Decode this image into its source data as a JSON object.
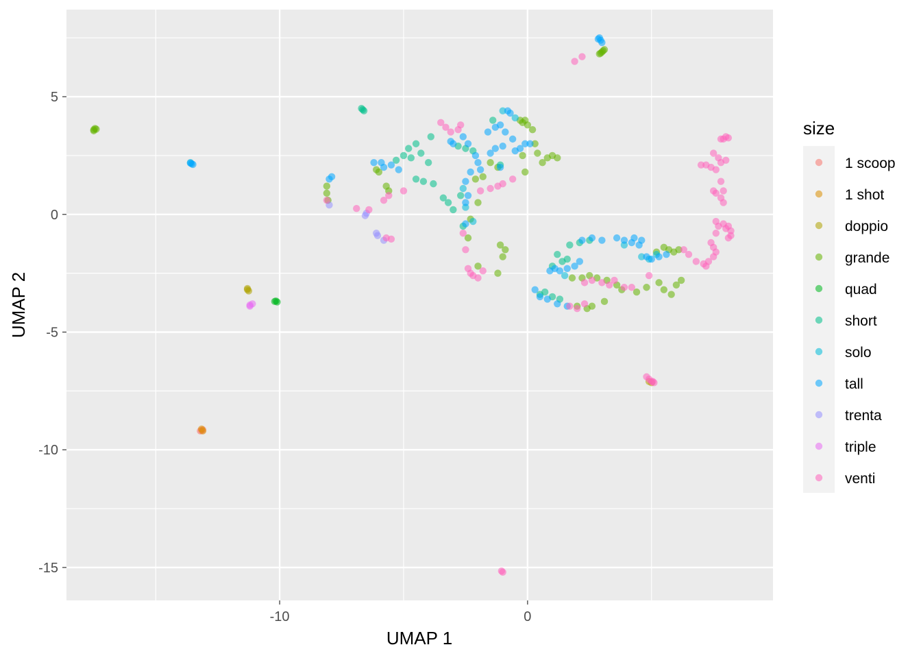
{
  "chart_data": {
    "type": "scatter",
    "xlabel": "UMAP 1",
    "ylabel": "UMAP 2",
    "xlim": [
      -18.6,
      9.9
    ],
    "ylim": [
      -16.4,
      8.7
    ],
    "x_ticks": [
      -10,
      0
    ],
    "y_ticks": [
      5,
      0,
      -5,
      -10,
      -15
    ],
    "x_tick_labels": [
      "-10",
      "0"
    ],
    "y_tick_labels": [
      "5",
      "0",
      "-5",
      "-10",
      "-15"
    ],
    "grid": true,
    "point_opacity": 0.55,
    "legend": {
      "title": "size",
      "placement": "right",
      "entries": [
        "1 scoop",
        "1 shot",
        "doppio",
        "grande",
        "quad",
        "short",
        "solo",
        "tall",
        "trenta",
        "triple",
        "venti"
      ]
    },
    "series": [
      {
        "name": "1 scoop",
        "color": "#F8766D",
        "points": [
          [
            -13.2,
            -9.2
          ],
          [
            -13.1,
            -9.15
          ],
          [
            -13.15,
            -9.18
          ]
        ]
      },
      {
        "name": "1 shot",
        "color": "#DB8E00",
        "points": [
          [
            -13.15,
            -9.12
          ],
          [
            -13.1,
            -9.2
          ]
        ]
      },
      {
        "name": "doppio",
        "color": "#AEA200",
        "points": [
          [
            -11.3,
            -3.2
          ],
          [
            -11.25,
            -3.25
          ],
          [
            -11.3,
            -3.15
          ],
          [
            5.0,
            -7.15
          ],
          [
            4.9,
            -7.1
          ]
        ]
      },
      {
        "name": "grande",
        "color": "#64B200",
        "points": [
          [
            -17.5,
            3.6
          ],
          [
            -17.45,
            3.65
          ],
          [
            -17.4,
            3.62
          ],
          [
            -17.5,
            3.55
          ],
          [
            3.1,
            7.0
          ],
          [
            3.0,
            6.9
          ],
          [
            2.95,
            6.85
          ],
          [
            2.9,
            6.82
          ],
          [
            3.05,
            6.95
          ],
          [
            -8.1,
            0.9
          ],
          [
            -8.05,
            0.6
          ],
          [
            -8.1,
            1.2
          ],
          [
            -6.1,
            1.9
          ],
          [
            -6.0,
            1.8
          ],
          [
            -5.7,
            1.2
          ],
          [
            -5.6,
            1.0
          ],
          [
            -0.3,
            4.0
          ],
          [
            -0.2,
            3.9
          ],
          [
            -0.1,
            4.0
          ],
          [
            0.0,
            3.8
          ],
          [
            0.2,
            3.6
          ],
          [
            0.3,
            3.0
          ],
          [
            0.4,
            2.6
          ],
          [
            0.8,
            2.4
          ],
          [
            1.0,
            2.5
          ],
          [
            1.2,
            2.4
          ],
          [
            0.6,
            2.2
          ],
          [
            -0.2,
            2.5
          ],
          [
            -0.1,
            1.8
          ],
          [
            -1.2,
            2.0
          ],
          [
            -1.5,
            2.2
          ],
          [
            -1.8,
            1.6
          ],
          [
            -2.0,
            0.5
          ],
          [
            -2.1,
            1.5
          ],
          [
            -2.3,
            -0.2
          ],
          [
            -2.4,
            -1.0
          ],
          [
            -2.0,
            -2.2
          ],
          [
            -1.2,
            -2.5
          ],
          [
            -1.0,
            -1.8
          ],
          [
            -0.9,
            -1.5
          ],
          [
            -1.1,
            -1.3
          ],
          [
            1.8,
            -2.7
          ],
          [
            2.2,
            -2.7
          ],
          [
            2.5,
            -2.6
          ],
          [
            2.8,
            -2.7
          ],
          [
            3.2,
            -2.8
          ],
          [
            3.6,
            -3.0
          ],
          [
            3.8,
            -3.2
          ],
          [
            2.0,
            -3.9
          ],
          [
            2.4,
            -4.0
          ],
          [
            2.6,
            -3.9
          ],
          [
            3.1,
            -3.7
          ],
          [
            5.3,
            -2.9
          ],
          [
            5.5,
            -3.2
          ],
          [
            5.8,
            -3.4
          ],
          [
            6.0,
            -3.0
          ],
          [
            6.2,
            -2.8
          ],
          [
            5.7,
            -1.5
          ],
          [
            5.5,
            -1.4
          ],
          [
            5.9,
            -1.6
          ],
          [
            6.1,
            -1.5
          ],
          [
            5.2,
            -1.6
          ],
          [
            4.8,
            -3.1
          ],
          [
            4.4,
            -3.3
          ]
        ]
      },
      {
        "name": "quad",
        "color": "#00B81F",
        "points": [
          [
            -10.2,
            -3.7
          ],
          [
            -10.1,
            -3.72
          ],
          [
            -10.15,
            -3.68
          ]
        ]
      },
      {
        "name": "short",
        "color": "#00C08B",
        "points": [
          [
            -6.7,
            4.5
          ],
          [
            -6.6,
            4.4
          ],
          [
            -6.65,
            4.45
          ],
          [
            -5.0,
            2.5
          ],
          [
            -4.8,
            2.8
          ],
          [
            -4.5,
            3.0
          ],
          [
            -4.3,
            2.6
          ],
          [
            -4.0,
            2.2
          ],
          [
            -3.9,
            3.3
          ],
          [
            -5.3,
            2.3
          ],
          [
            -4.7,
            2.4
          ],
          [
            -4.5,
            1.5
          ],
          [
            -4.2,
            1.4
          ],
          [
            -3.8,
            1.3
          ],
          [
            -3.4,
            0.7
          ],
          [
            -3.2,
            0.5
          ],
          [
            -3.0,
            0.2
          ],
          [
            -2.6,
            -0.5
          ],
          [
            -2.7,
            0.8
          ],
          [
            -2.2,
            2.7
          ],
          [
            -2.5,
            2.8
          ],
          [
            -2.8,
            2.9
          ],
          [
            -1.4,
            4.0
          ],
          [
            -1.1,
            2.1
          ],
          [
            0.5,
            -3.4
          ],
          [
            0.7,
            -3.3
          ],
          [
            1.0,
            -3.5
          ],
          [
            1.3,
            -3.6
          ],
          [
            1.0,
            -2.2
          ],
          [
            1.4,
            -2.0
          ],
          [
            1.7,
            -1.3
          ],
          [
            2.1,
            -1.2
          ],
          [
            2.5,
            -1.1
          ],
          [
            1.6,
            -1.9
          ],
          [
            1.2,
            -1.7
          ]
        ]
      },
      {
        "name": "solo",
        "color": "#00BCD8",
        "points": [
          [
            -13.6,
            2.2
          ],
          [
            -1.0,
            4.4
          ],
          [
            -0.5,
            4.1
          ],
          [
            -2.6,
            1.1
          ],
          [
            -2.5,
            0.3
          ],
          [
            -2.2,
            -0.3
          ],
          [
            4.6,
            -1.8
          ],
          [
            4.9,
            -1.9
          ],
          [
            5.2,
            -1.7
          ],
          [
            3.9,
            -1.3
          ],
          [
            1.5,
            -2.6
          ]
        ]
      },
      {
        "name": "tall",
        "color": "#00A5FF",
        "points": [
          [
            -13.55,
            2.15
          ],
          [
            -13.5,
            2.12
          ],
          [
            -13.6,
            2.18
          ],
          [
            2.9,
            7.5
          ],
          [
            2.95,
            7.4
          ],
          [
            3.0,
            7.3
          ],
          [
            2.85,
            7.45
          ],
          [
            -8.0,
            1.5
          ],
          [
            -7.9,
            1.6
          ],
          [
            -6.2,
            2.2
          ],
          [
            -5.9,
            2.2
          ],
          [
            -5.8,
            2.0
          ],
          [
            -5.5,
            2.1
          ],
          [
            -5.2,
            1.9
          ],
          [
            -3.1,
            3.1
          ],
          [
            -3.0,
            3.0
          ],
          [
            -2.6,
            3.3
          ],
          [
            -2.4,
            3.0
          ],
          [
            -2.1,
            2.5
          ],
          [
            -2.0,
            2.2
          ],
          [
            -1.9,
            1.9
          ],
          [
            -2.3,
            1.8
          ],
          [
            -2.5,
            1.4
          ],
          [
            -1.6,
            3.5
          ],
          [
            -1.3,
            3.7
          ],
          [
            -1.1,
            3.8
          ],
          [
            -0.8,
            4.4
          ],
          [
            -0.7,
            4.3
          ],
          [
            -0.9,
            3.5
          ],
          [
            -0.6,
            3.2
          ],
          [
            -0.5,
            2.7
          ],
          [
            -0.3,
            2.8
          ],
          [
            -0.1,
            3.0
          ],
          [
            0.1,
            3.0
          ],
          [
            -1.0,
            2.9
          ],
          [
            -1.3,
            2.8
          ],
          [
            -1.5,
            2.6
          ],
          [
            -1.1,
            2.0
          ],
          [
            -2.4,
            0.8
          ],
          [
            -2.5,
            0.5
          ],
          [
            -2.5,
            -0.4
          ],
          [
            0.9,
            -2.4
          ],
          [
            1.1,
            -2.3
          ],
          [
            1.3,
            -2.4
          ],
          [
            1.6,
            -2.3
          ],
          [
            1.9,
            -2.2
          ],
          [
            2.1,
            -2.0
          ],
          [
            0.3,
            -3.2
          ],
          [
            0.5,
            -3.5
          ],
          [
            0.8,
            -3.6
          ],
          [
            1.2,
            -3.8
          ],
          [
            1.6,
            -3.9
          ],
          [
            2.2,
            -1.1
          ],
          [
            2.6,
            -1.0
          ],
          [
            3.0,
            -1.1
          ],
          [
            3.6,
            -1.0
          ],
          [
            3.9,
            -1.1
          ],
          [
            4.2,
            -1.2
          ],
          [
            4.3,
            -1.0
          ],
          [
            4.5,
            -1.3
          ],
          [
            4.6,
            -1.1
          ],
          [
            4.8,
            -1.8
          ],
          [
            5.0,
            -1.9
          ],
          [
            5.3,
            -1.8
          ],
          [
            5.6,
            -1.7
          ]
        ]
      },
      {
        "name": "trenta",
        "color": "#9590FF",
        "points": [
          [
            -8.0,
            0.4
          ],
          [
            -6.55,
            -0.05
          ],
          [
            -6.5,
            0.05
          ],
          [
            -6.1,
            -0.8
          ],
          [
            -6.05,
            -0.9
          ],
          [
            -5.8,
            -1.1
          ]
        ]
      },
      {
        "name": "triple",
        "color": "#E76BF3",
        "points": [
          [
            -11.2,
            -3.9
          ],
          [
            -11.1,
            -3.8
          ],
          [
            -11.2,
            -3.85
          ]
        ]
      },
      {
        "name": "venti",
        "color": "#FF62BC",
        "points": [
          [
            1.9,
            6.5
          ],
          [
            2.2,
            6.7
          ],
          [
            -1.0,
            -15.2
          ],
          [
            -1.05,
            -15.15
          ],
          [
            -6.9,
            0.25
          ],
          [
            -6.4,
            0.2
          ],
          [
            -5.7,
            -1.0
          ],
          [
            -5.5,
            -1.05
          ],
          [
            -5.8,
            0.6
          ],
          [
            -5.6,
            0.8
          ],
          [
            -5.0,
            1.0
          ],
          [
            -8.1,
            0.6
          ],
          [
            -3.5,
            3.9
          ],
          [
            -3.3,
            3.7
          ],
          [
            -3.1,
            3.5
          ],
          [
            -2.7,
            3.8
          ],
          [
            -2.8,
            3.6
          ],
          [
            -2.6,
            -0.8
          ],
          [
            -2.5,
            -1.5
          ],
          [
            -2.4,
            -2.3
          ],
          [
            -2.3,
            -2.5
          ],
          [
            -2.2,
            -2.6
          ],
          [
            -2.0,
            -2.7
          ],
          [
            -1.8,
            -2.4
          ],
          [
            -1.9,
            1.0
          ],
          [
            -1.5,
            1.1
          ],
          [
            -1.2,
            1.2
          ],
          [
            -1.0,
            1.3
          ],
          [
            -0.6,
            1.5
          ],
          [
            2.3,
            -2.9
          ],
          [
            2.6,
            -2.8
          ],
          [
            3.0,
            -2.9
          ],
          [
            3.3,
            -3.0
          ],
          [
            3.5,
            -2.8
          ],
          [
            3.9,
            -3.1
          ],
          [
            4.2,
            -3.1
          ],
          [
            2.3,
            -3.8
          ],
          [
            2.0,
            -4.0
          ],
          [
            1.7,
            -3.9
          ],
          [
            4.9,
            -2.6
          ],
          [
            4.8,
            -6.9
          ],
          [
            4.9,
            -7.0
          ],
          [
            5.0,
            -7.1
          ],
          [
            5.1,
            -7.15
          ],
          [
            5.05,
            -7.1
          ],
          [
            7.0,
            2.1
          ],
          [
            7.2,
            2.1
          ],
          [
            7.4,
            2.0
          ],
          [
            7.6,
            1.9
          ],
          [
            7.8,
            2.2
          ],
          [
            8.0,
            2.3
          ],
          [
            7.5,
            2.6
          ],
          [
            7.7,
            2.4
          ],
          [
            7.8,
            3.2
          ],
          [
            7.9,
            3.2
          ],
          [
            8.0,
            3.3
          ],
          [
            8.1,
            3.25
          ],
          [
            7.8,
            1.4
          ],
          [
            7.9,
            1.0
          ],
          [
            7.8,
            0.7
          ],
          [
            7.9,
            0.5
          ],
          [
            7.6,
            0.9
          ],
          [
            7.5,
            1.0
          ],
          [
            7.6,
            -0.3
          ],
          [
            7.7,
            -0.5
          ],
          [
            7.9,
            -0.4
          ],
          [
            8.0,
            -0.6
          ],
          [
            8.1,
            -0.5
          ],
          [
            8.2,
            -0.7
          ],
          [
            8.2,
            -0.9
          ],
          [
            8.1,
            -1.0
          ],
          [
            7.6,
            -0.8
          ],
          [
            7.4,
            -1.2
          ],
          [
            7.5,
            -1.4
          ],
          [
            7.6,
            -1.6
          ],
          [
            7.5,
            -1.8
          ],
          [
            7.3,
            -2.0
          ],
          [
            7.1,
            -2.1
          ],
          [
            7.2,
            -2.2
          ],
          [
            6.8,
            -2.0
          ],
          [
            6.5,
            -1.7
          ],
          [
            6.3,
            -1.5
          ]
        ]
      }
    ]
  }
}
